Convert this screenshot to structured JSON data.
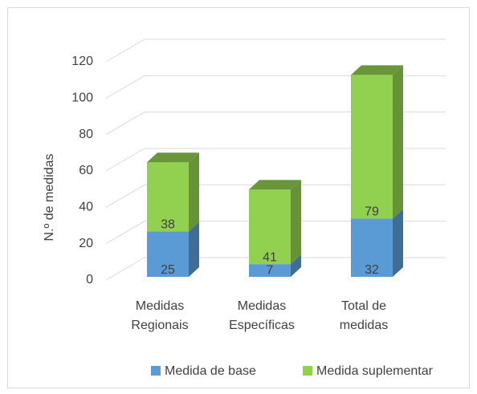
{
  "chart_data": {
    "type": "bar3d_stacked",
    "y_label": "N.º de medidas",
    "categories": [
      "Medidas\nRegionais",
      "Medidas\nEspecíficas",
      "Total de\nmedidas"
    ],
    "series": [
      {
        "name": "Medida de base",
        "color": "#5b9bd5",
        "values": [
          25,
          7,
          32
        ]
      },
      {
        "name": "Medida suplementar",
        "color": "#92d050",
        "values": [
          38,
          41,
          79
        ]
      }
    ],
    "ylim": [
      0,
      120
    ],
    "yticks": [
      0,
      20,
      40,
      60,
      80,
      100,
      120
    ],
    "grid": true,
    "legend": "bottom"
  }
}
